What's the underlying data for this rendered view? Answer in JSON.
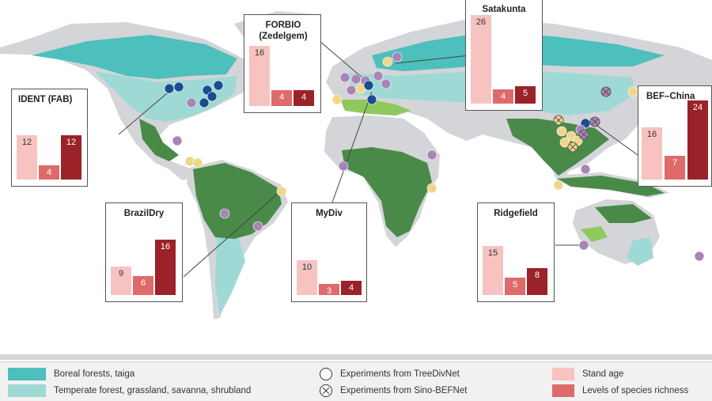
{
  "colors": {
    "boreal": "#4dbfbc",
    "temperate": "#9fd9d5",
    "tropical": "#4a8a49",
    "mediterranean": "#8fc95e",
    "land": "#d3d5d8",
    "stand_age": "#f6c3c1",
    "species_richness": "#df6a6a",
    "treedivnet_blue": "#1a4d8f",
    "treedivnet_purple": "#a984b8",
    "treedivnet_yellow": "#f0d68a"
  },
  "panels": [
    {
      "id": "ident",
      "title": "IDENT (FAB)",
      "values": [
        "12",
        "4",
        "12"
      ]
    },
    {
      "id": "forbio",
      "title": "FORBIO (Zedelgem)",
      "values": [
        "16",
        "4",
        "4"
      ]
    },
    {
      "id": "satakunta",
      "title": "Satakunta",
      "values": [
        "26",
        "4",
        "5"
      ]
    },
    {
      "id": "bef",
      "title": "BEF–China",
      "values": [
        "16",
        "7",
        "24"
      ]
    },
    {
      "id": "brazil",
      "title": "BrazilDry",
      "values": [
        "9",
        "6",
        "16"
      ]
    },
    {
      "id": "mydiv",
      "title": "MyDiv",
      "values": [
        "10",
        "3",
        "4"
      ]
    },
    {
      "id": "ridgefield",
      "title": "Ridgefield",
      "values": [
        "15",
        "5",
        "8"
      ]
    }
  ],
  "legend": {
    "boreal": "Boreal forests, taiga",
    "temperate": "Temperate forest, grassland, savanna, shrubland",
    "treedivnet": "Experiments from TreeDivNet",
    "sinobef": "Experiments from Sino-BEFNet",
    "stand_age": "Stand age",
    "species_richness": "Levels of species richness"
  }
}
